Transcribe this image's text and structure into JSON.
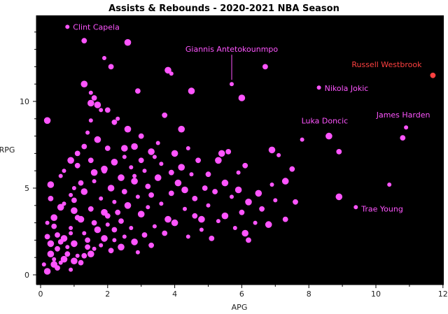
{
  "chart_data": {
    "type": "scatter",
    "title": "Assists & Rebounds - 2020-2021 NBA Season",
    "xlabel": "APG",
    "ylabel": "RPG",
    "xlim": [
      0,
      12
    ],
    "ylim": [
      0,
      15
    ],
    "xticks": [
      0,
      2,
      4,
      6,
      8,
      10,
      12
    ],
    "yticks": [
      0,
      5,
      10
    ],
    "grid": false,
    "background": "#000000",
    "point_color": "#ff55ff",
    "highlight_color": "#ff4040",
    "annotations": [
      {
        "label": "Clint Capela",
        "x": 0.8,
        "y": 14.3,
        "color": "#ff55ff"
      },
      {
        "label": "Giannis Antetokounmpo",
        "x": 5.7,
        "y": 11.0,
        "color": "#ff55ff"
      },
      {
        "label": "Russell Westbrook",
        "x": 11.7,
        "y": 11.5,
        "color": "#ff4040"
      },
      {
        "label": "Nikola Jokic",
        "x": 8.3,
        "y": 10.8,
        "color": "#ff55ff"
      },
      {
        "label": "Luka Doncic",
        "x": 8.6,
        "y": 8.0,
        "color": "#ff55ff"
      },
      {
        "label": "James Harden",
        "x": 10.9,
        "y": 8.5,
        "color": "#ff55ff"
      },
      {
        "label": "Trae Young",
        "x": 9.4,
        "y": 3.9,
        "color": "#ff55ff"
      }
    ],
    "points": [
      [
        0.8,
        14.3
      ],
      [
        1.3,
        13.5
      ],
      [
        2.6,
        13.4
      ],
      [
        1.9,
        12.5
      ],
      [
        2.1,
        12.0
      ],
      [
        3.8,
        11.8
      ],
      [
        3.9,
        11.6
      ],
      [
        6.7,
        12.0
      ],
      [
        1.3,
        11.0
      ],
      [
        5.7,
        11.0
      ],
      [
        2.9,
        10.6
      ],
      [
        4.5,
        10.6
      ],
      [
        1.5,
        10.5
      ],
      [
        1.6,
        10.2
      ],
      [
        6.0,
        10.2
      ],
      [
        8.3,
        10.8
      ],
      [
        11.7,
        11.5
      ],
      [
        1.7,
        9.8
      ],
      [
        1.8,
        9.5
      ],
      [
        3.7,
        9.2
      ],
      [
        0.2,
        8.9
      ],
      [
        1.5,
        8.9
      ],
      [
        2.2,
        8.8
      ],
      [
        4.2,
        8.4
      ],
      [
        10.9,
        8.5
      ],
      [
        10.8,
        7.9
      ],
      [
        8.6,
        8.0
      ],
      [
        7.8,
        7.8
      ],
      [
        8.9,
        7.1
      ],
      [
        6.9,
        7.2
      ],
      [
        7.1,
        6.9
      ],
      [
        5.6,
        7.1
      ],
      [
        5.4,
        7.0
      ],
      [
        4.4,
        7.3
      ],
      [
        1.3,
        7.4
      ],
      [
        2.5,
        7.3
      ],
      [
        3.4,
        6.8
      ],
      [
        1.1,
        6.3
      ],
      [
        1.9,
        6.1
      ],
      [
        2.8,
        5.7
      ],
      [
        6.1,
        6.3
      ],
      [
        5.3,
        6.6
      ],
      [
        5.9,
        5.9
      ],
      [
        7.5,
        6.1
      ],
      [
        7.3,
        5.4
      ],
      [
        10.4,
        5.2
      ],
      [
        4.9,
        5.0
      ],
      [
        5.9,
        4.9
      ],
      [
        7.0,
        4.3
      ],
      [
        7.6,
        4.2
      ],
      [
        8.9,
        4.5
      ],
      [
        9.4,
        3.9
      ],
      [
        7.3,
        3.2
      ],
      [
        6.1,
        2.4
      ],
      [
        5.3,
        3.1
      ],
      [
        4.6,
        3.4
      ],
      [
        3.8,
        3.2
      ],
      [
        2.2,
        2.0
      ],
      [
        1.4,
        1.6
      ],
      [
        0.2,
        0.2
      ],
      [
        0.4,
        0.9
      ],
      [
        0.5,
        1.5
      ],
      [
        0.7,
        2.1
      ],
      [
        0.9,
        2.7
      ],
      [
        1.1,
        3.3
      ],
      [
        0.6,
        3.9
      ],
      [
        0.9,
        4.6
      ],
      [
        1.2,
        5.3
      ],
      [
        1.6,
        5.9
      ],
      [
        1.0,
        5.0
      ],
      [
        0.4,
        2.8
      ],
      [
        0.3,
        1.8
      ],
      [
        0.6,
        0.7
      ],
      [
        0.8,
        1.2
      ],
      [
        1.0,
        1.8
      ],
      [
        1.3,
        2.4
      ],
      [
        1.6,
        3.0
      ],
      [
        1.9,
        3.6
      ],
      [
        2.2,
        4.2
      ],
      [
        2.5,
        4.8
      ],
      [
        2.8,
        5.4
      ],
      [
        3.1,
        6.0
      ],
      [
        3.3,
        4.6
      ],
      [
        3.0,
        3.5
      ],
      [
        2.7,
        2.7
      ],
      [
        2.4,
        3.1
      ],
      [
        2.1,
        5.0
      ],
      [
        1.8,
        4.4
      ],
      [
        1.5,
        3.8
      ],
      [
        1.2,
        3.2
      ],
      [
        0.9,
        2.4
      ],
      [
        0.6,
        1.9
      ],
      [
        0.3,
        1.2
      ],
      [
        0.1,
        0.6
      ],
      [
        0.5,
        0.4
      ],
      [
        0.7,
        0.9
      ],
      [
        1.1,
        1.1
      ],
      [
        1.4,
        2.0
      ],
      [
        1.7,
        2.6
      ],
      [
        2.0,
        2.9
      ],
      [
        2.3,
        3.6
      ],
      [
        2.6,
        4.0
      ],
      [
        2.9,
        4.5
      ],
      [
        3.2,
        5.1
      ],
      [
        3.5,
        5.6
      ],
      [
        3.6,
        4.1
      ],
      [
        3.9,
        4.7
      ],
      [
        4.1,
        5.3
      ],
      [
        4.3,
        3.8
      ],
      [
        4.6,
        4.4
      ],
      [
        4.8,
        3.2
      ],
      [
        5.0,
        4.0
      ],
      [
        5.2,
        4.8
      ],
      [
        5.5,
        5.3
      ],
      [
        5.7,
        4.5
      ],
      [
        6.0,
        3.6
      ],
      [
        6.2,
        4.2
      ],
      [
        6.4,
        3.0
      ],
      [
        6.6,
        3.8
      ],
      [
        6.8,
        2.9
      ],
      [
        3.4,
        2.8
      ],
      [
        3.7,
        2.4
      ],
      [
        4.0,
        3.0
      ],
      [
        4.4,
        2.2
      ],
      [
        3.1,
        2.3
      ],
      [
        2.8,
        1.9
      ],
      [
        2.5,
        2.2
      ],
      [
        2.2,
        2.6
      ],
      [
        1.9,
        2.1
      ],
      [
        1.6,
        1.5
      ],
      [
        1.3,
        1.1
      ],
      [
        1.0,
        0.8
      ],
      [
        0.8,
        1.6
      ],
      [
        0.5,
        2.3
      ],
      [
        0.4,
        3.3
      ],
      [
        0.7,
        4.1
      ],
      [
        1.0,
        4.3
      ],
      [
        1.3,
        4.8
      ],
      [
        1.6,
        5.4
      ],
      [
        1.9,
        6.0
      ],
      [
        2.2,
        6.5
      ],
      [
        2.5,
        6.8
      ],
      [
        2.0,
        7.3
      ],
      [
        1.7,
        7.8
      ],
      [
        1.4,
        8.2
      ],
      [
        1.1,
        7.0
      ],
      [
        0.9,
        6.6
      ],
      [
        0.6,
        5.7
      ],
      [
        0.3,
        4.4
      ],
      [
        2.4,
        5.6
      ],
      [
        2.7,
        6.2
      ],
      [
        3.0,
        6.6
      ],
      [
        3.3,
        7.1
      ],
      [
        3.6,
        6.4
      ],
      [
        3.9,
        5.9
      ],
      [
        4.2,
        6.2
      ],
      [
        4.5,
        5.8
      ],
      [
        4.7,
        6.6
      ],
      [
        4.0,
        7.0
      ],
      [
        3.5,
        7.6
      ],
      [
        3.0,
        8.0
      ],
      [
        2.6,
        8.4
      ],
      [
        2.3,
        9.0
      ],
      [
        2.0,
        9.5
      ],
      [
        1.5,
        9.9
      ],
      [
        4.8,
        2.6
      ],
      [
        5.1,
        2.1
      ],
      [
        5.5,
        3.4
      ],
      [
        5.8,
        2.7
      ],
      [
        6.2,
        2.0
      ],
      [
        6.5,
        4.7
      ],
      [
        6.9,
        5.2
      ],
      [
        5.0,
        5.8
      ],
      [
        4.3,
        4.9
      ],
      [
        3.2,
        3.9
      ],
      [
        2.0,
        3.4
      ],
      [
        1.0,
        3.7
      ],
      [
        0.2,
        3.0
      ],
      [
        0.2,
        2.2
      ],
      [
        0.4,
        0.6
      ],
      [
        0.9,
        0.3
      ],
      [
        1.2,
        0.7
      ],
      [
        1.5,
        1.2
      ],
      [
        1.8,
        1.7
      ],
      [
        2.1,
        1.4
      ],
      [
        2.4,
        1.6
      ],
      [
        2.9,
        1.3
      ],
      [
        3.3,
        1.7
      ],
      [
        0.3,
        5.2
      ],
      [
        0.7,
        6.0
      ],
      [
        1.5,
        6.6
      ],
      [
        2.8,
        7.4
      ]
    ]
  }
}
